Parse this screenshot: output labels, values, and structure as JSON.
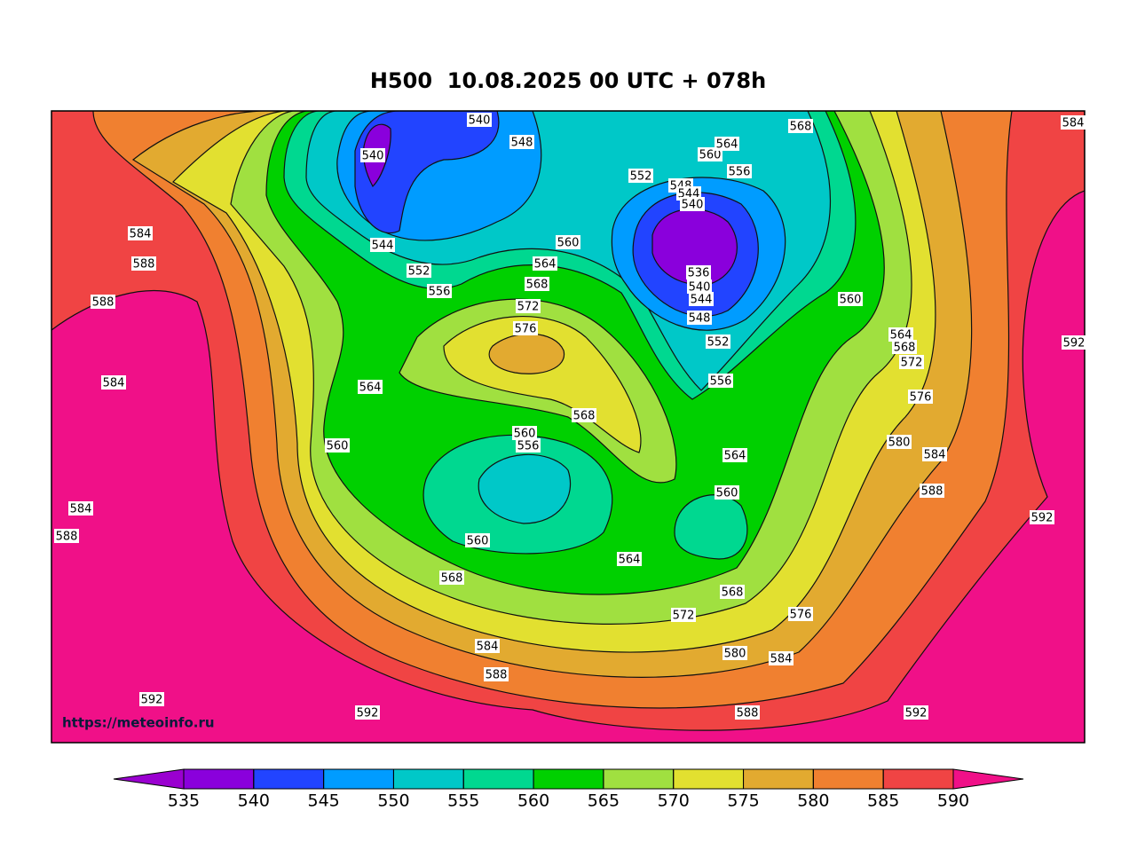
{
  "chart_data": {
    "type": "contour-map",
    "title": "H500  10.08.2025 00 UTC + 078h",
    "watermark": "https://meteoinfo.ru",
    "colorbar": {
      "ticks": [
        535,
        540,
        545,
        550,
        555,
        560,
        565,
        570,
        575,
        580,
        585,
        590
      ],
      "colors": [
        "#9a00d0",
        "#8a00dc",
        "#2244ff",
        "#009cff",
        "#00c8c8",
        "#00d890",
        "#00d000",
        "#a0e040",
        "#e2e030",
        "#e2aa30",
        "#f08030",
        "#f04444",
        "#f01088"
      ]
    },
    "contour_labels": [
      540,
      548,
      540,
      544,
      552,
      556,
      560,
      564,
      568,
      572,
      576,
      552,
      548,
      544,
      540,
      536,
      540,
      544,
      548,
      552,
      556,
      560,
      564,
      556,
      568,
      584,
      560,
      564,
      568,
      572,
      576,
      580,
      584,
      588,
      592,
      592,
      584,
      588,
      588,
      584,
      584,
      588,
      564,
      560,
      560,
      556,
      568,
      564,
      560,
      560,
      564,
      568,
      568,
      572,
      576,
      580,
      584,
      584,
      588,
      588,
      592,
      592,
      592
    ]
  }
}
